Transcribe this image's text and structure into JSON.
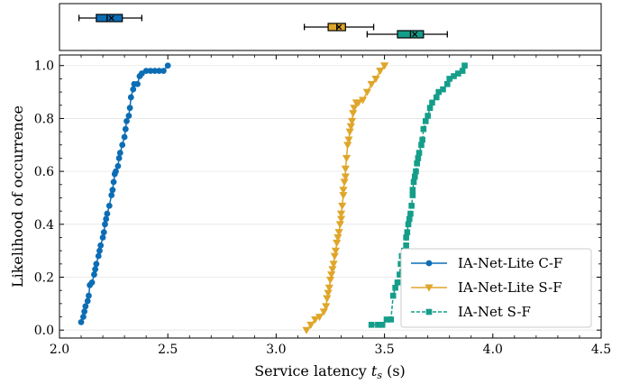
{
  "chart_data": {
    "type": "line",
    "subtype": "empirical CDF with box-plot strip",
    "xlabel": "Service latency",
    "xlabel_symbol": "t",
    "xlabel_sub": "s",
    "xlabel_unit": "(s)",
    "ylabel": "Likelihood of occurrence",
    "xlim": [
      2.0,
      4.5
    ],
    "ylim": [
      -0.03,
      1.04
    ],
    "xticks": [
      2.0,
      2.5,
      3.0,
      3.5,
      4.0,
      4.5
    ],
    "xtick_labels": [
      "2.0",
      "2.5",
      "3.0",
      "3.5",
      "4.0",
      "4.5"
    ],
    "yticks": [
      0.0,
      0.2,
      0.4,
      0.6,
      0.8,
      1.0
    ],
    "ytick_labels": [
      "0.0",
      "0.2",
      "0.4",
      "0.6",
      "0.8",
      "1.0"
    ],
    "grid": true,
    "legend_position": "lower-right",
    "series": [
      {
        "name": "IA-Net-Lite C-F",
        "color": "#0c6db5",
        "marker": "circle",
        "linestyle": "solid",
        "points": [
          [
            2.1,
            0.03
          ],
          [
            2.11,
            0.05
          ],
          [
            2.115,
            0.07
          ],
          [
            2.12,
            0.09
          ],
          [
            2.13,
            0.11
          ],
          [
            2.135,
            0.13
          ],
          [
            2.14,
            0.17
          ],
          [
            2.15,
            0.18
          ],
          [
            2.16,
            0.21
          ],
          [
            2.165,
            0.23
          ],
          [
            2.17,
            0.25
          ],
          [
            2.18,
            0.28
          ],
          [
            2.185,
            0.3
          ],
          [
            2.19,
            0.32
          ],
          [
            2.2,
            0.35
          ],
          [
            2.205,
            0.37
          ],
          [
            2.21,
            0.4
          ],
          [
            2.215,
            0.42
          ],
          [
            2.22,
            0.44
          ],
          [
            2.23,
            0.47
          ],
          [
            2.24,
            0.51
          ],
          [
            2.245,
            0.53
          ],
          [
            2.25,
            0.56
          ],
          [
            2.255,
            0.59
          ],
          [
            2.26,
            0.6
          ],
          [
            2.27,
            0.62
          ],
          [
            2.275,
            0.65
          ],
          [
            2.28,
            0.67
          ],
          [
            2.29,
            0.7
          ],
          [
            2.3,
            0.73
          ],
          [
            2.305,
            0.76
          ],
          [
            2.31,
            0.79
          ],
          [
            2.32,
            0.81
          ],
          [
            2.325,
            0.84
          ],
          [
            2.33,
            0.88
          ],
          [
            2.34,
            0.91
          ],
          [
            2.345,
            0.93
          ],
          [
            2.36,
            0.93
          ],
          [
            2.37,
            0.96
          ],
          [
            2.38,
            0.97
          ],
          [
            2.4,
            0.98
          ],
          [
            2.42,
            0.98
          ],
          [
            2.44,
            0.98
          ],
          [
            2.46,
            0.98
          ],
          [
            2.48,
            0.98
          ],
          [
            2.5,
            1.0
          ]
        ]
      },
      {
        "name": "IA-Net-Lite S-F",
        "color": "#e0a62a",
        "marker": "triangle-down",
        "linestyle": "solid",
        "points": [
          [
            3.14,
            0.0
          ],
          [
            3.16,
            0.02
          ],
          [
            3.18,
            0.04
          ],
          [
            3.2,
            0.05
          ],
          [
            3.22,
            0.07
          ],
          [
            3.23,
            0.09
          ],
          [
            3.235,
            0.12
          ],
          [
            3.24,
            0.14
          ],
          [
            3.245,
            0.16
          ],
          [
            3.25,
            0.19
          ],
          [
            3.255,
            0.21
          ],
          [
            3.26,
            0.23
          ],
          [
            3.265,
            0.25
          ],
          [
            3.27,
            0.28
          ],
          [
            3.275,
            0.3
          ],
          [
            3.28,
            0.33
          ],
          [
            3.285,
            0.35
          ],
          [
            3.29,
            0.37
          ],
          [
            3.295,
            0.4
          ],
          [
            3.3,
            0.42
          ],
          [
            3.3,
            0.44
          ],
          [
            3.305,
            0.47
          ],
          [
            3.31,
            0.51
          ],
          [
            3.31,
            0.53
          ],
          [
            3.315,
            0.56
          ],
          [
            3.32,
            0.58
          ],
          [
            3.32,
            0.61
          ],
          [
            3.325,
            0.65
          ],
          [
            3.33,
            0.7
          ],
          [
            3.335,
            0.72
          ],
          [
            3.34,
            0.75
          ],
          [
            3.345,
            0.77
          ],
          [
            3.35,
            0.79
          ],
          [
            3.355,
            0.82
          ],
          [
            3.36,
            0.84
          ],
          [
            3.37,
            0.86
          ],
          [
            3.38,
            0.86
          ],
          [
            3.4,
            0.87
          ],
          [
            3.42,
            0.9
          ],
          [
            3.44,
            0.93
          ],
          [
            3.46,
            0.95
          ],
          [
            3.48,
            0.98
          ],
          [
            3.5,
            1.0
          ]
        ]
      },
      {
        "name": "IA-Net S-F",
        "color": "#149e8a",
        "marker": "square",
        "linestyle": "dashed",
        "points": [
          [
            3.44,
            0.02
          ],
          [
            3.47,
            0.02
          ],
          [
            3.49,
            0.02
          ],
          [
            3.51,
            0.04
          ],
          [
            3.53,
            0.04
          ],
          [
            3.54,
            0.13
          ],
          [
            3.55,
            0.16
          ],
          [
            3.56,
            0.18
          ],
          [
            3.57,
            0.21
          ],
          [
            3.575,
            0.25
          ],
          [
            3.58,
            0.28
          ],
          [
            3.59,
            0.3
          ],
          [
            3.6,
            0.32
          ],
          [
            3.6,
            0.35
          ],
          [
            3.605,
            0.37
          ],
          [
            3.61,
            0.4
          ],
          [
            3.615,
            0.42
          ],
          [
            3.62,
            0.44
          ],
          [
            3.625,
            0.47
          ],
          [
            3.63,
            0.51
          ],
          [
            3.63,
            0.53
          ],
          [
            3.635,
            0.56
          ],
          [
            3.64,
            0.58
          ],
          [
            3.645,
            0.6
          ],
          [
            3.65,
            0.63
          ],
          [
            3.655,
            0.65
          ],
          [
            3.66,
            0.67
          ],
          [
            3.67,
            0.7
          ],
          [
            3.675,
            0.72
          ],
          [
            3.68,
            0.76
          ],
          [
            3.69,
            0.79
          ],
          [
            3.7,
            0.81
          ],
          [
            3.71,
            0.84
          ],
          [
            3.72,
            0.86
          ],
          [
            3.74,
            0.88
          ],
          [
            3.75,
            0.9
          ],
          [
            3.77,
            0.91
          ],
          [
            3.79,
            0.93
          ],
          [
            3.8,
            0.95
          ],
          [
            3.82,
            0.96
          ],
          [
            3.84,
            0.97
          ],
          [
            3.86,
            0.98
          ],
          [
            3.87,
            1.0
          ]
        ]
      }
    ],
    "boxplots": [
      {
        "series": "IA-Net-Lite C-F",
        "color": "#0c6db5",
        "whisker_low": 2.09,
        "q1": 2.17,
        "median": 2.22,
        "mean": 2.24,
        "q3": 2.29,
        "whisker_high": 2.38
      },
      {
        "series": "IA-Net-Lite S-F",
        "color": "#e0a62a",
        "whisker_low": 3.13,
        "q1": 3.24,
        "median": 3.28,
        "mean": 3.29,
        "q3": 3.32,
        "whisker_high": 3.45
      },
      {
        "series": "IA-Net S-F",
        "color": "#149e8a",
        "whisker_low": 3.42,
        "q1": 3.56,
        "median": 3.62,
        "mean": 3.64,
        "q3": 3.68,
        "whisker_high": 3.79
      }
    ]
  }
}
